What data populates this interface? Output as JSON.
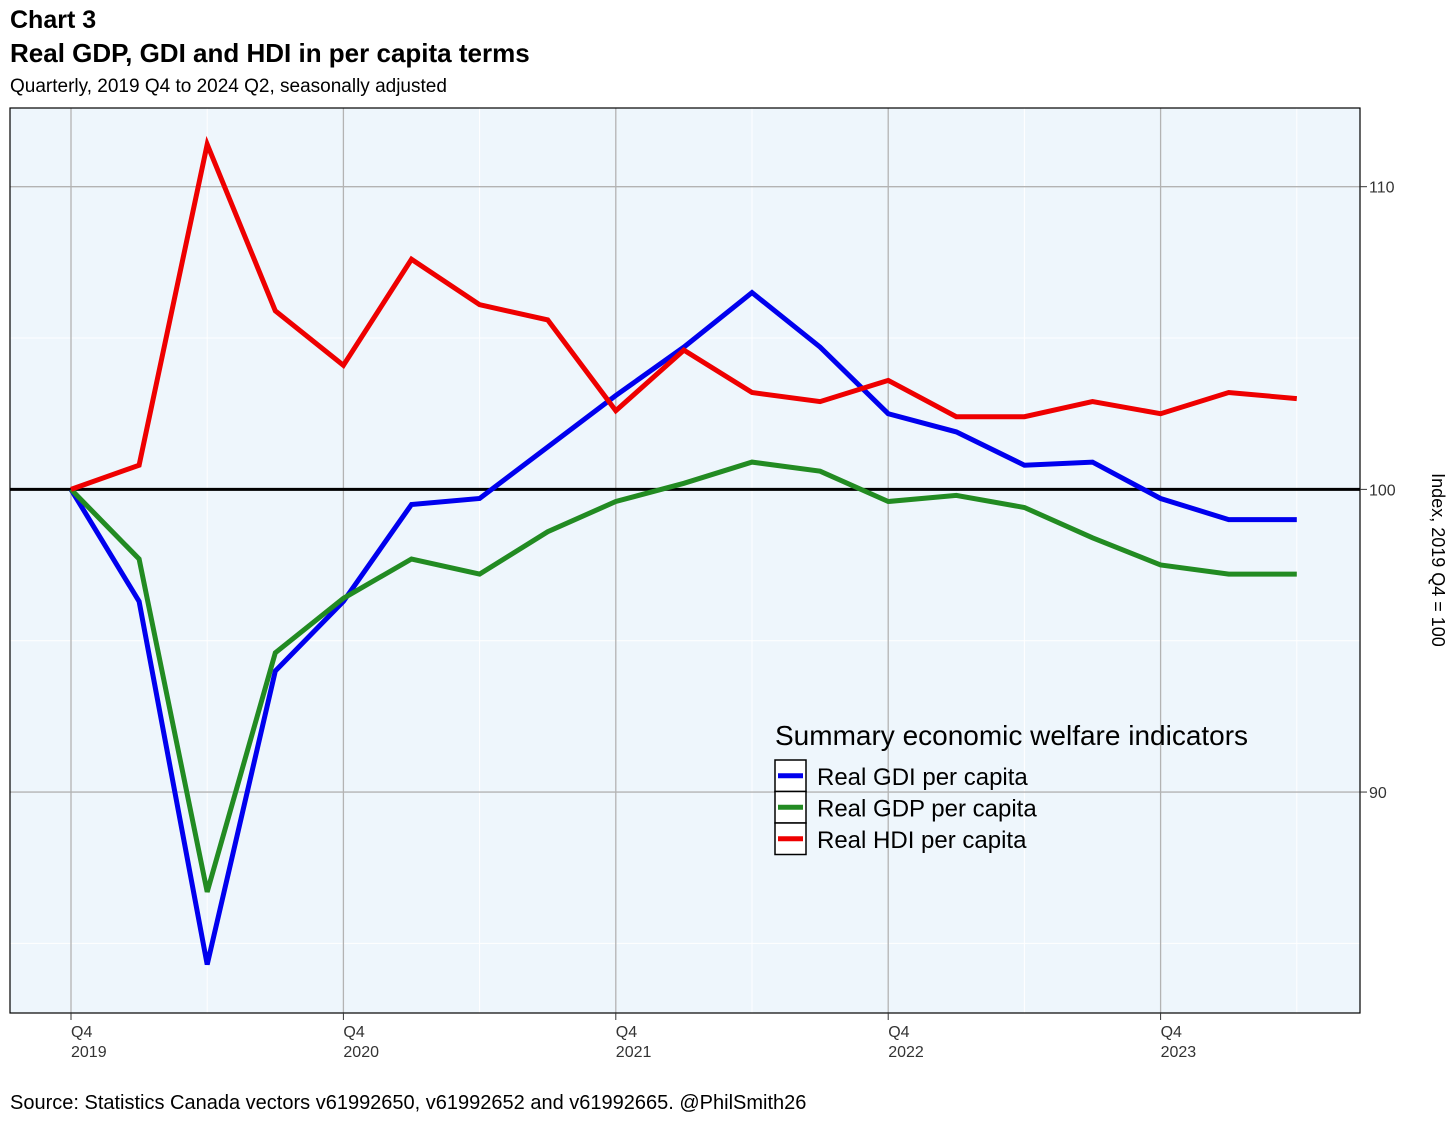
{
  "header": {
    "chart_number": "Chart 3",
    "title": "Real GDP, GDI and HDI in per capita terms",
    "subtitle": "Quarterly, 2019 Q4 to 2024 Q2, seasonally adjusted"
  },
  "footer": {
    "source": "Source: Statistics Canada vectors v61992650, v61992652  and v61992665. @PhilSmith26"
  },
  "colors": {
    "panel_background": "#eef6fc",
    "grid_major": "#b3b3b3",
    "grid_minor": "#ffffff",
    "reference_line": "#000000"
  },
  "chart_data": {
    "type": "line",
    "x": [
      "2019 Q4",
      "2020 Q1",
      "2020 Q2",
      "2020 Q3",
      "2020 Q4",
      "2021 Q1",
      "2021 Q2",
      "2021 Q3",
      "2021 Q4",
      "2022 Q1",
      "2022 Q2",
      "2022 Q3",
      "2022 Q4",
      "2023 Q1",
      "2023 Q2",
      "2023 Q3",
      "2023 Q4",
      "2024 Q1",
      "2024 Q2"
    ],
    "x_ticks": [
      {
        "index": 0,
        "line1": "Q4",
        "line2": "2019"
      },
      {
        "index": 4,
        "line1": "Q4",
        "line2": "2020"
      },
      {
        "index": 8,
        "line1": "Q4",
        "line2": "2021"
      },
      {
        "index": 12,
        "line1": "Q4",
        "line2": "2022"
      },
      {
        "index": 16,
        "line1": "Q4",
        "line2": "2023"
      }
    ],
    "ylabel": "Index, 2019 Q4 = 100",
    "y_axis_position": "right",
    "ylim": [
      82.7,
      112.6
    ],
    "y_ticks": [
      90,
      100,
      110
    ],
    "y_minor_ticks": [
      85,
      95,
      105
    ],
    "reference_line": 100,
    "grid": true,
    "legend": {
      "title": "Summary economic welfare indicators",
      "placement": "inside-bottom-right"
    },
    "series": [
      {
        "name": "Real GDI per capita",
        "color": "#0000ee",
        "values": [
          100.0,
          96.3,
          84.3,
          94.0,
          96.3,
          99.5,
          99.7,
          101.4,
          103.1,
          104.7,
          106.5,
          104.7,
          102.5,
          101.9,
          100.8,
          100.9,
          99.7,
          99.0,
          99.0
        ]
      },
      {
        "name": "Real GDP per capita",
        "color": "#228b22",
        "values": [
          100.0,
          97.7,
          86.7,
          94.6,
          96.4,
          97.7,
          97.2,
          98.6,
          99.6,
          100.2,
          100.9,
          100.6,
          99.6,
          99.8,
          99.4,
          98.4,
          97.5,
          97.2,
          97.2
        ]
      },
      {
        "name": "Real HDI per capita",
        "color": "#ee0000",
        "values": [
          100.0,
          100.8,
          111.4,
          105.9,
          104.1,
          107.6,
          106.1,
          105.6,
          102.6,
          104.6,
          103.2,
          102.9,
          103.6,
          102.4,
          102.4,
          102.9,
          102.5,
          103.2,
          103.0
        ]
      }
    ]
  }
}
